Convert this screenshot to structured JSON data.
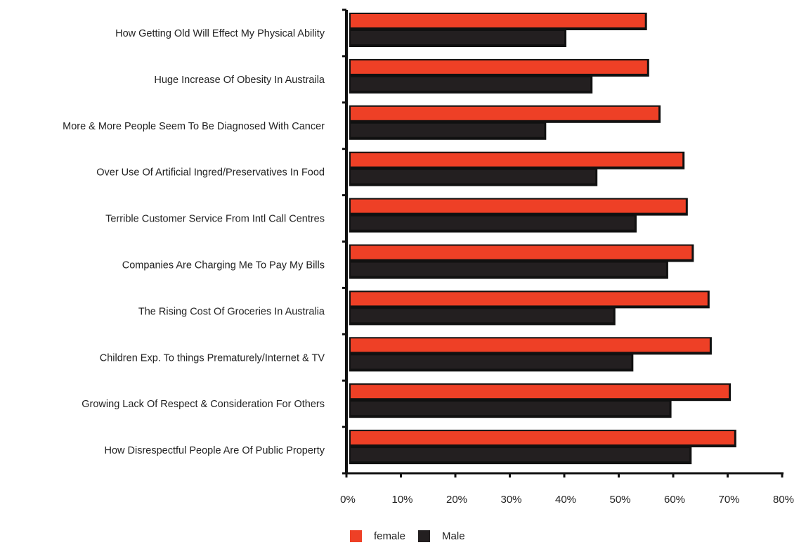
{
  "chart_data": {
    "type": "bar",
    "orientation": "horizontal",
    "categories": [
      "How Getting Old Will Effect My Physical Ability",
      "Huge Increase Of Obesity In Austraila",
      "More & More People Seem To Be Diagnosed With Cancer",
      "Over Use Of Artificial Ingred/Preservatives In Food",
      "Terrible Customer Service From Intl Call Centres",
      "Companies Are Charging Me To Pay My Bills",
      "The Rising Cost Of Groceries In Australia",
      "Children Exp. To things Prematurely/Internet & TV",
      "Growing Lack Of Respect & Consideration For Others",
      "How Disrespectful People Are Of Public Property"
    ],
    "series": [
      {
        "name": "female",
        "color": "#ee4026",
        "values": [
          54.8,
          55.2,
          57.3,
          61.7,
          62.3,
          63.4,
          66.3,
          66.7,
          70.2,
          71.2
        ]
      },
      {
        "name": "Male",
        "color": "#231f20",
        "values": [
          40.0,
          44.8,
          36.3,
          45.7,
          52.9,
          58.7,
          49.0,
          52.3,
          59.3,
          63.0
        ]
      }
    ],
    "xlim": [
      0,
      80
    ],
    "xticks": [
      "0%",
      "10%",
      "20%",
      "30%",
      "40%",
      "50%",
      "60%",
      "70%",
      "80%"
    ],
    "xlabel": "",
    "ylabel": "",
    "grid": false,
    "legend_position": "bottom"
  }
}
